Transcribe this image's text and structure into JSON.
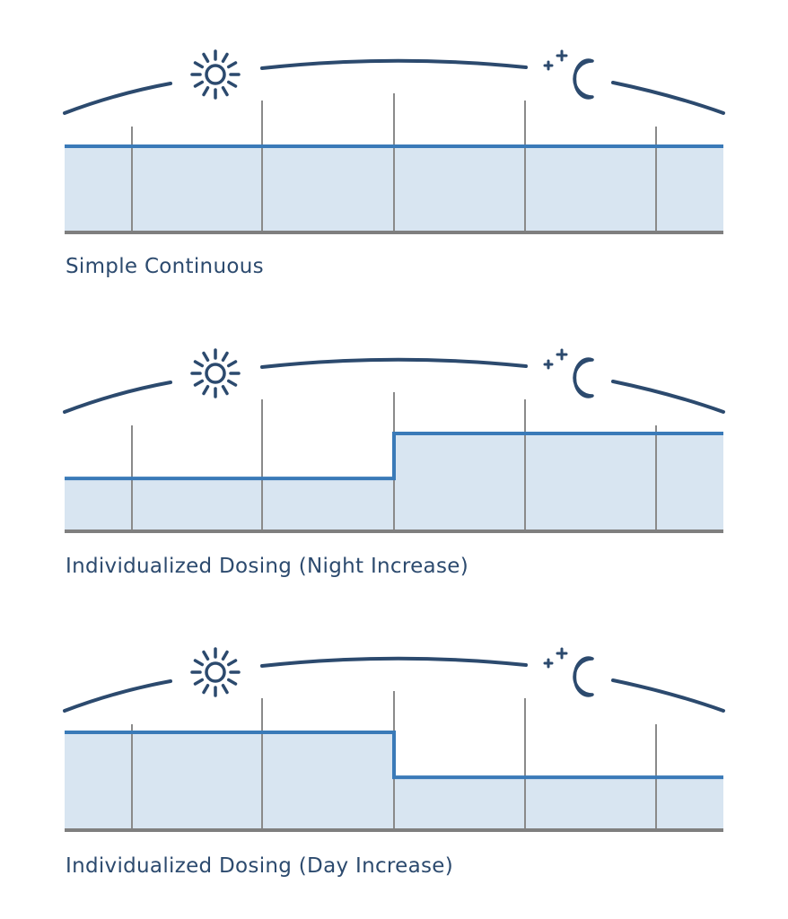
{
  "colors": {
    "arc": "#2c4a6e",
    "dose_line": "#3a7ab8",
    "fill": "#d8e5f1",
    "grid": "#8a8a8a",
    "baseline": "#7f7f7f",
    "label": "#2c4a6e"
  },
  "icons": [
    "sun-icon",
    "moon-stars-icon"
  ],
  "chart_data": [
    {
      "type": "area",
      "title": "Simple Continuous",
      "segments": [
        {
          "period": "day",
          "level": "baseline"
        },
        {
          "period": "night",
          "level": "baseline"
        }
      ],
      "values": [
        1,
        1
      ]
    },
    {
      "type": "area",
      "title": "Individualized Dosing (Night Increase)",
      "segments": [
        {
          "period": "day",
          "level": "lower"
        },
        {
          "period": "night",
          "level": "higher"
        }
      ],
      "values": [
        0.54,
        1
      ]
    },
    {
      "type": "area",
      "title": "Individualized Dosing (Day Increase)",
      "segments": [
        {
          "period": "day",
          "level": "higher"
        },
        {
          "period": "night",
          "level": "lower"
        }
      ],
      "values": [
        1,
        0.54
      ]
    }
  ]
}
